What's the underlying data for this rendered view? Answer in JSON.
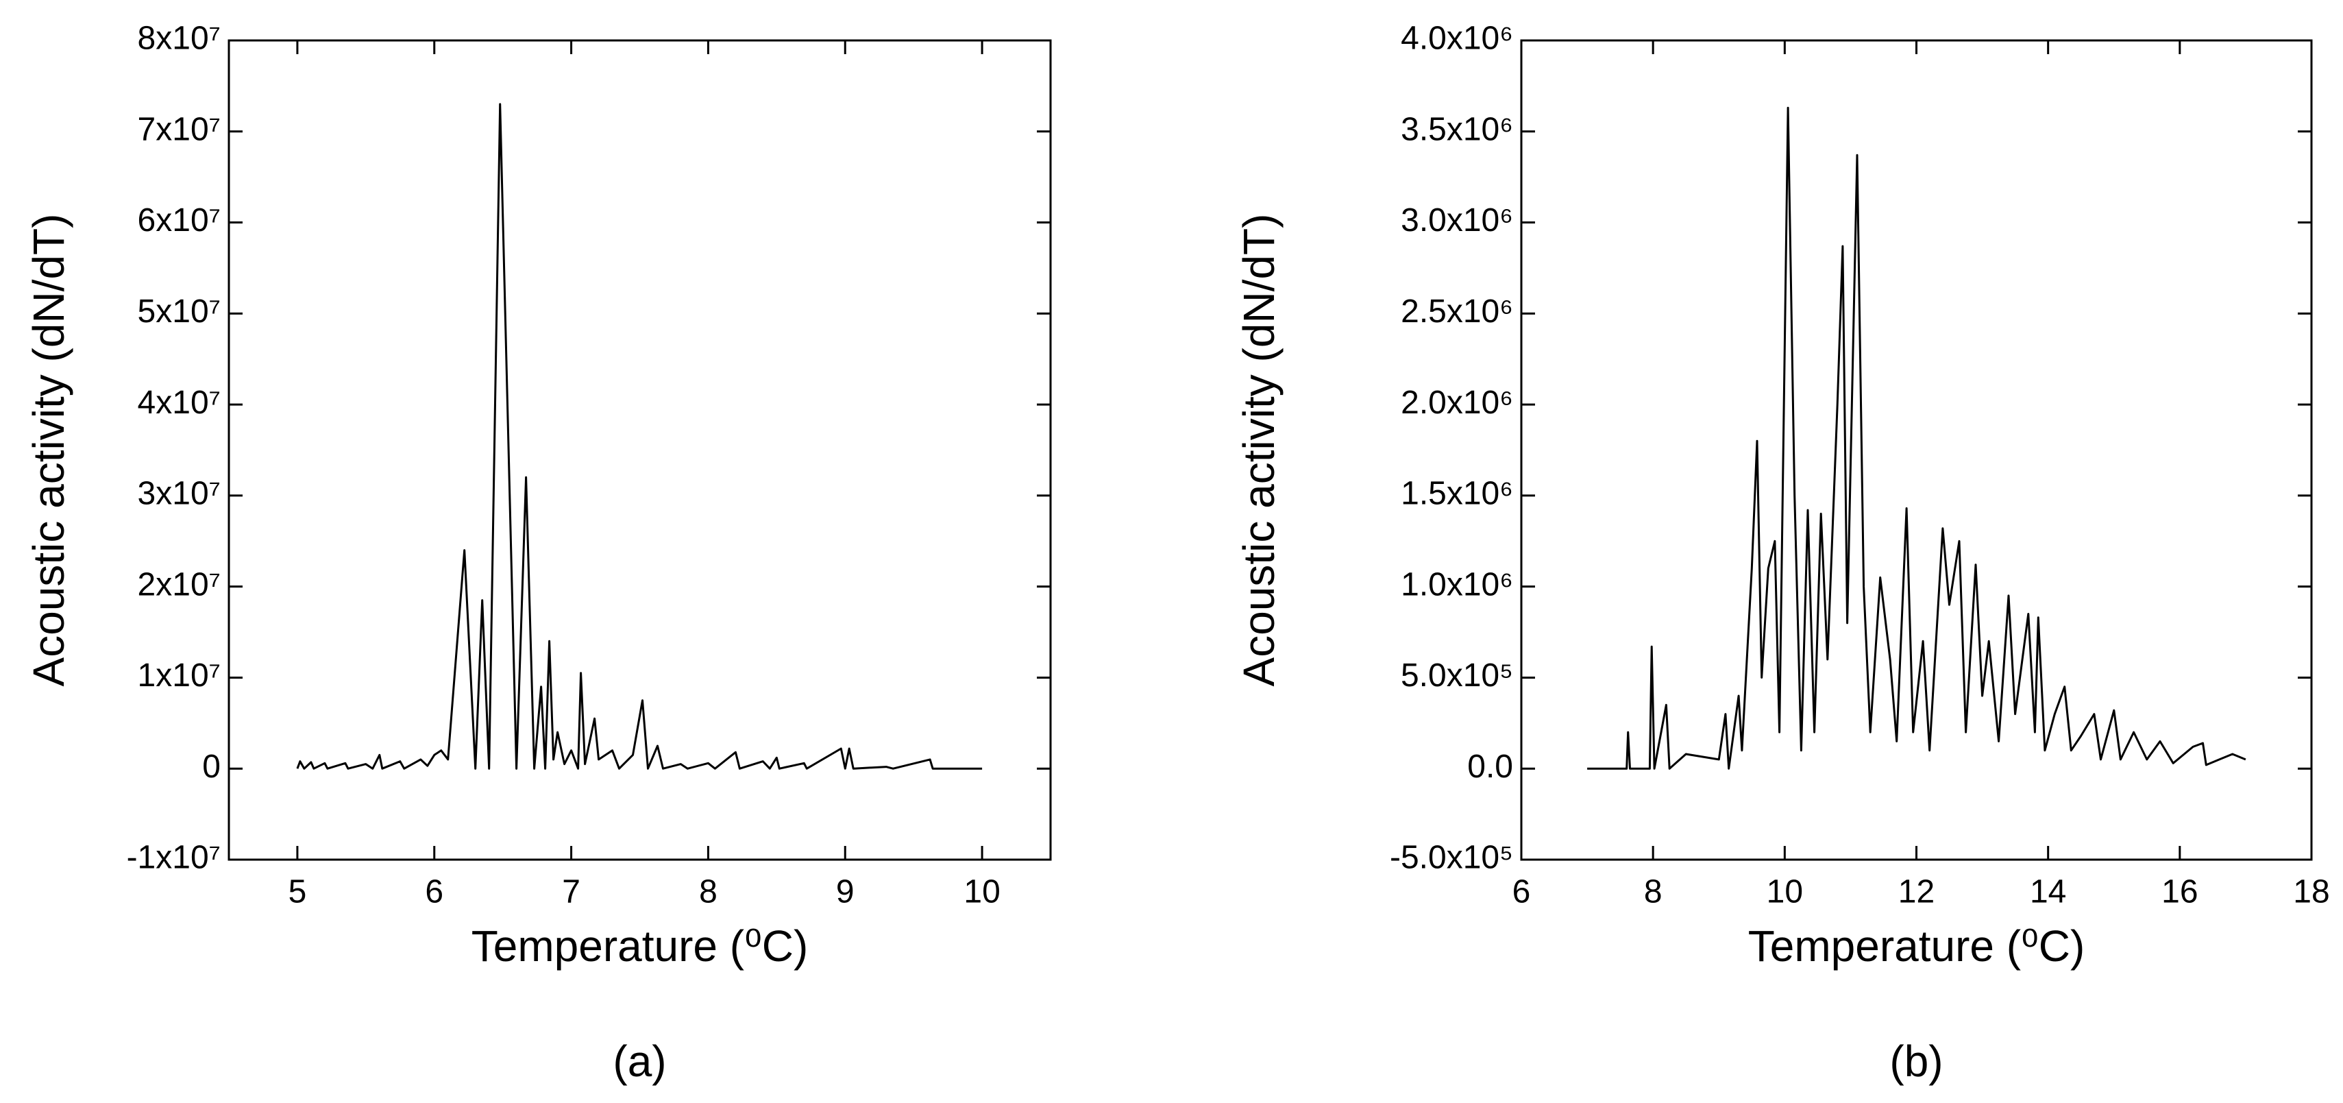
{
  "chart_data": [
    {
      "type": "line",
      "xlabel": "Temperature (⁰C)",
      "ylabel": "Acoustic activity (dN/dT)",
      "caption": "(a)",
      "color": "#000000",
      "xlim": [
        4.5,
        10.5
      ],
      "xticks": [
        5,
        6,
        7,
        8,
        9,
        10
      ],
      "ylim": [
        -10000000,
        80000000
      ],
      "yticks": [
        {
          "value": -10000000,
          "label": "-1x10⁷"
        },
        0,
        {
          "value": 10000000,
          "label": "1x10⁷"
        },
        {
          "value": 20000000,
          "label": "2x10⁷"
        },
        {
          "value": 30000000,
          "label": "3x10⁷"
        },
        {
          "value": 40000000,
          "label": "4x10⁷"
        },
        {
          "value": 50000000,
          "label": "5x10⁷"
        },
        {
          "value": 60000000,
          "label": "6x10⁷"
        },
        {
          "value": 70000000,
          "label": "7x10⁷"
        },
        {
          "value": 80000000,
          "label": "8x10⁷"
        }
      ],
      "x": [
        5.0,
        5.02,
        5.05,
        5.1,
        5.12,
        5.2,
        5.22,
        5.35,
        5.37,
        5.5,
        5.55,
        5.6,
        5.62,
        5.75,
        5.78,
        5.9,
        5.95,
        6.0,
        6.05,
        6.1,
        6.22,
        6.3,
        6.35,
        6.4,
        6.48,
        6.6,
        6.67,
        6.73,
        6.78,
        6.81,
        6.84,
        6.87,
        6.9,
        6.95,
        7.0,
        7.05,
        7.07,
        7.1,
        7.17,
        7.2,
        7.3,
        7.35,
        7.45,
        7.52,
        7.56,
        7.63,
        7.67,
        7.8,
        7.85,
        8.0,
        8.05,
        8.2,
        8.23,
        8.4,
        8.45,
        8.5,
        8.52,
        8.7,
        8.72,
        8.97,
        9.0,
        9.03,
        9.06,
        9.3,
        9.35,
        9.62,
        9.64,
        10.0
      ],
      "values": [
        0,
        800000,
        0,
        700000,
        0,
        600000,
        0,
        600000,
        0,
        500000,
        0,
        1500000,
        0,
        800000,
        0,
        1000000,
        300000,
        1500000,
        2000000,
        1000000,
        24000000,
        0,
        18500000,
        0,
        73000000,
        0,
        32000000,
        0,
        9000000,
        0,
        14000000,
        1000000,
        4000000,
        500000,
        2000000,
        0,
        10500000,
        500000,
        5500000,
        1000000,
        2000000,
        0,
        1500000,
        7500000,
        0,
        2500000,
        0,
        500000,
        0,
        600000,
        0,
        1800000,
        0,
        800000,
        0,
        1200000,
        0,
        600000,
        0,
        2200000,
        0,
        2200000,
        0,
        200000,
        0,
        1000000,
        0,
        0
      ]
    },
    {
      "type": "line",
      "xlabel": "Temperature (⁰C)",
      "ylabel": "Acoustic activity (dN/dT)",
      "caption": "(b)",
      "color": "#000000",
      "xlim": [
        6,
        18
      ],
      "xticks": [
        6,
        8,
        10,
        12,
        14,
        16,
        18
      ],
      "ylim": [
        -500000,
        4000000
      ],
      "yticks": [
        {
          "value": -500000,
          "label": "-5.0x10⁵"
        },
        {
          "value": 0,
          "label": "0.0"
        },
        {
          "value": 500000,
          "label": "5.0x10⁵"
        },
        {
          "value": 1000000,
          "label": "1.0x10⁶"
        },
        {
          "value": 1500000,
          "label": "1.5x10⁶"
        },
        {
          "value": 2000000,
          "label": "2.0x10⁶"
        },
        {
          "value": 2500000,
          "label": "2.5x10⁶"
        },
        {
          "value": 3000000,
          "label": "3.0x10⁶"
        },
        {
          "value": 3500000,
          "label": "3.5x10⁶"
        },
        {
          "value": 4000000,
          "label": "4.0x10⁶"
        }
      ],
      "x": [
        7.0,
        7.6,
        7.62,
        7.65,
        7.95,
        7.98,
        8.02,
        8.2,
        8.25,
        8.5,
        9.0,
        9.1,
        9.15,
        9.3,
        9.35,
        9.5,
        9.58,
        9.65,
        9.75,
        9.85,
        9.92,
        10.05,
        10.15,
        10.25,
        10.35,
        10.45,
        10.55,
        10.65,
        10.8,
        10.88,
        10.95,
        11.1,
        11.2,
        11.3,
        11.45,
        11.6,
        11.7,
        11.85,
        11.95,
        12.1,
        12.2,
        12.4,
        12.5,
        12.65,
        12.75,
        12.9,
        13.0,
        13.1,
        13.25,
        13.4,
        13.5,
        13.7,
        13.8,
        13.85,
        13.95,
        14.1,
        14.25,
        14.35,
        14.5,
        14.7,
        14.8,
        15.0,
        15.1,
        15.3,
        15.5,
        15.7,
        15.9,
        16.2,
        16.35,
        16.4,
        16.6,
        16.8,
        17.0
      ],
      "values": [
        0,
        0,
        200000,
        0,
        0,
        670000,
        0,
        350000,
        0,
        80000,
        50000,
        300000,
        0,
        400000,
        100000,
        1100000,
        1800000,
        500000,
        1100000,
        1250000,
        200000,
        3630000,
        1500000,
        100000,
        1420000,
        200000,
        1400000,
        600000,
        2000000,
        2870000,
        800000,
        3370000,
        1000000,
        200000,
        1050000,
        600000,
        150000,
        1430000,
        200000,
        700000,
        100000,
        1320000,
        900000,
        1250000,
        200000,
        1120000,
        400000,
        700000,
        150000,
        950000,
        300000,
        850000,
        200000,
        830000,
        100000,
        300000,
        450000,
        100000,
        180000,
        300000,
        50000,
        320000,
        50000,
        200000,
        50000,
        150000,
        30000,
        120000,
        140000,
        20000,
        50000,
        80000,
        50000
      ]
    }
  ]
}
